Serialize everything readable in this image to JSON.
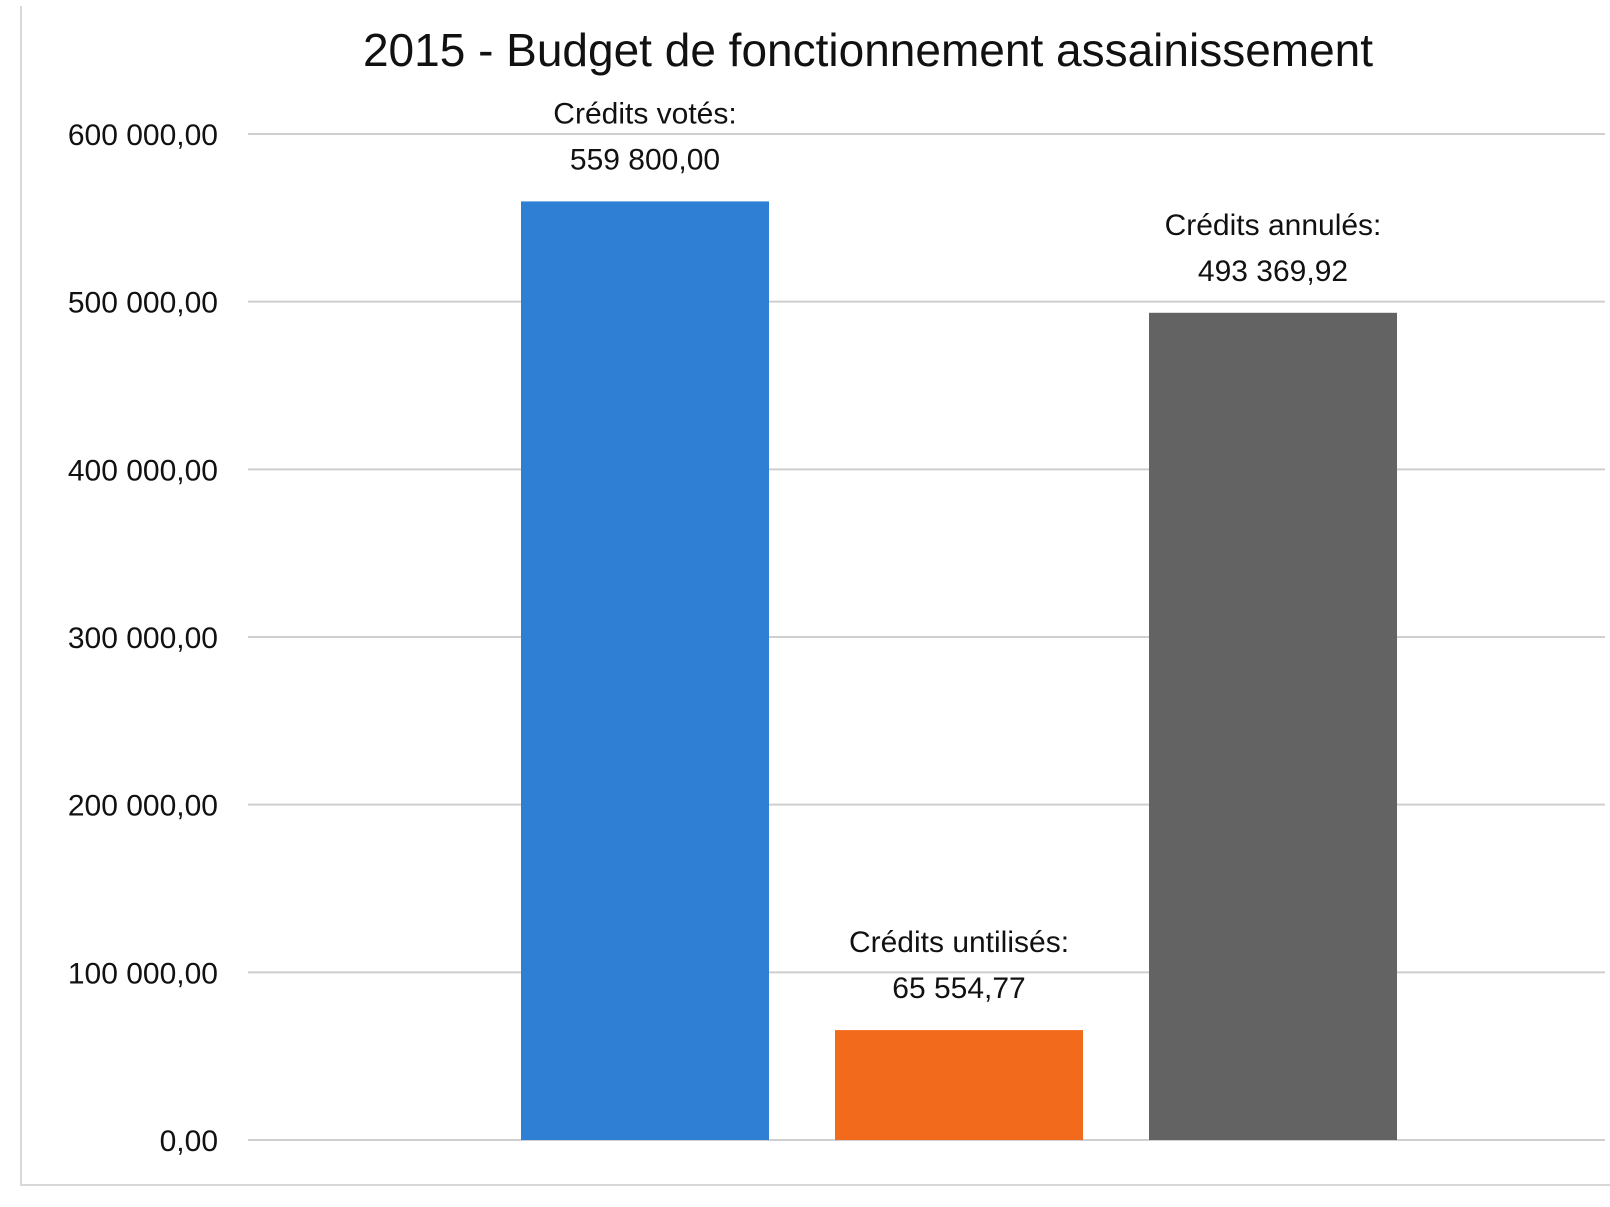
{
  "chart_data": {
    "type": "bar",
    "title": "2015 - Budget de fonctionnement assainissement",
    "xlabel": "",
    "ylabel": "",
    "ylim": [
      0,
      600000
    ],
    "y_ticks": [
      0,
      100000,
      200000,
      300000,
      400000,
      500000,
      600000
    ],
    "y_tick_labels": [
      "0,00",
      "100 000,00",
      "200 000,00",
      "300 000,00",
      "400 000,00",
      "500 000,00",
      "600 000,00"
    ],
    "grid": true,
    "legend": "none",
    "bars": [
      {
        "label_line1": "Crédits votés:",
        "label_line2": "559 800,00",
        "value": 559800.0,
        "color": "#2f7fd4"
      },
      {
        "label_line1": "Crédits untilisés:",
        "label_line2": "65 554,77",
        "value": 65554.77,
        "color": "#f26a1b"
      },
      {
        "label_line1": "Crédits annulés:",
        "label_line2": "493 369,92",
        "value": 493369.92,
        "color": "#636363"
      }
    ]
  }
}
